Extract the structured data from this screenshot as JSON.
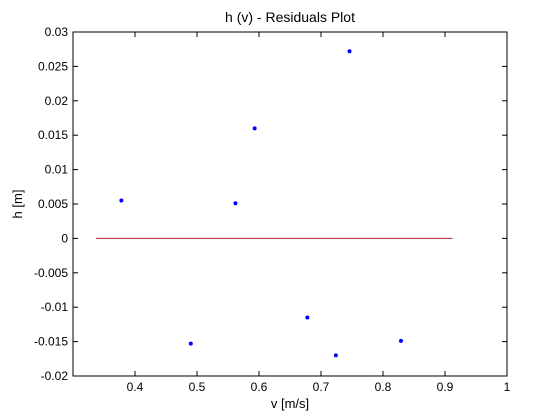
{
  "chart_data": {
    "type": "scatter",
    "title": "h (v) - Residuals Plot",
    "xlabel": "v [m/s]",
    "ylabel": "h [m]",
    "xlim": [
      0.3,
      1.0
    ],
    "ylim": [
      -0.02,
      0.03
    ],
    "x_ticks": [
      "0.4",
      "0.5",
      "0.6",
      "0.7",
      "0.8",
      "0.9",
      "1"
    ],
    "y_ticks": [
      "-0.02",
      "-0.015",
      "-0.01",
      "-0.005",
      "0",
      "0.005",
      "0.01",
      "0.015",
      "0.02",
      "0.025",
      "0.03"
    ],
    "grid": false,
    "series": [
      {
        "marker": "dot",
        "color": "#0000ff",
        "points": [
          {
            "x": 0.378,
            "y": 0.0055
          },
          {
            "x": 0.49,
            "y": -0.0153
          },
          {
            "x": 0.562,
            "y": 0.0051
          },
          {
            "x": 0.593,
            "y": 0.016
          },
          {
            "x": 0.678,
            "y": -0.0115
          },
          {
            "x": 0.724,
            "y": -0.017
          },
          {
            "x": 0.746,
            "y": 0.0272
          },
          {
            "x": 0.829,
            "y": -0.0149
          }
        ]
      }
    ],
    "reference_line": {
      "color": "#b22222",
      "x": [
        0.337,
        0.912
      ],
      "y": [
        0,
        0
      ]
    }
  }
}
